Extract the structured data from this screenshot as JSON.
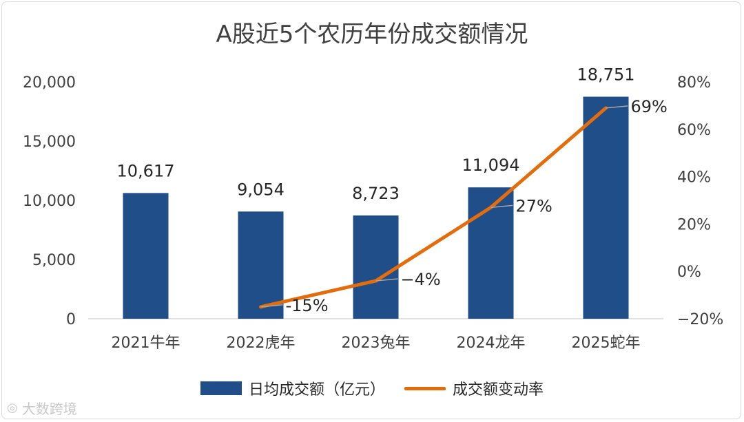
{
  "chart_data": {
    "type": "bar+line",
    "title": "A股近5个农历年份成交额情况",
    "categories": [
      "2021牛年",
      "2022虎年",
      "2023兔年",
      "2024龙年",
      "2025蛇年"
    ],
    "series": [
      {
        "name": "日均成交额（亿元）",
        "type": "bar",
        "axis": "left",
        "color": "#1f4e89",
        "values": [
          10617,
          9054,
          8723,
          11094,
          18751
        ],
        "labels": [
          "10,617",
          "9,054",
          "8,723",
          "11,094",
          "18,751"
        ]
      },
      {
        "name": "成交额变动率",
        "type": "line",
        "axis": "right",
        "color": "#e46c0a",
        "values": [
          null,
          -15,
          -4,
          27,
          69
        ],
        "labels": [
          "",
          "-15%",
          "−4%",
          "27%",
          "69%"
        ]
      }
    ],
    "y_left": {
      "range": [
        0,
        20000
      ],
      "ticks": [
        "0",
        "5,000",
        "10,000",
        "15,000",
        "20,000"
      ]
    },
    "y_right": {
      "range": [
        -20,
        80
      ],
      "ticks": [
        "−20%",
        "0%",
        "20%",
        "40%",
        "60%",
        "80%"
      ]
    },
    "grid": false,
    "legend_position": "bottom"
  },
  "watermark": {
    "text": "大数跨境",
    "icon": "logo-icon"
  }
}
